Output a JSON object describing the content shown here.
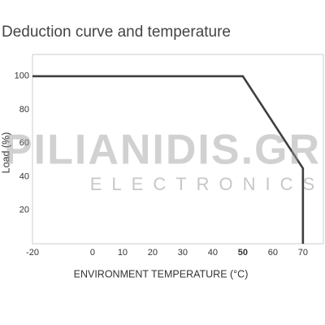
{
  "chart_data": {
    "type": "line",
    "title": "Deduction curve and temperature",
    "x_label": "ENVIRONMENT TEMPERATURE (°C)",
    "y_label": "Load (%)",
    "x": [
      -20,
      50,
      70,
      70
    ],
    "series": [
      {
        "color": "#3f3f3f",
        "values": [
          100,
          100,
          45,
          0
        ]
      }
    ],
    "xlim": [
      -20,
      76.8
    ],
    "xticks": [
      -20,
      0,
      10,
      20,
      30,
      40,
      50,
      60,
      70
    ],
    "ylim": [
      0,
      113
    ],
    "yticks": [
      20,
      40,
      60,
      80,
      100
    ],
    "highlight_xtick": 50,
    "grid": false,
    "watermark": {
      "title": "PILIANIDIS.GR",
      "subtitle": "ELECTRONICS"
    }
  }
}
